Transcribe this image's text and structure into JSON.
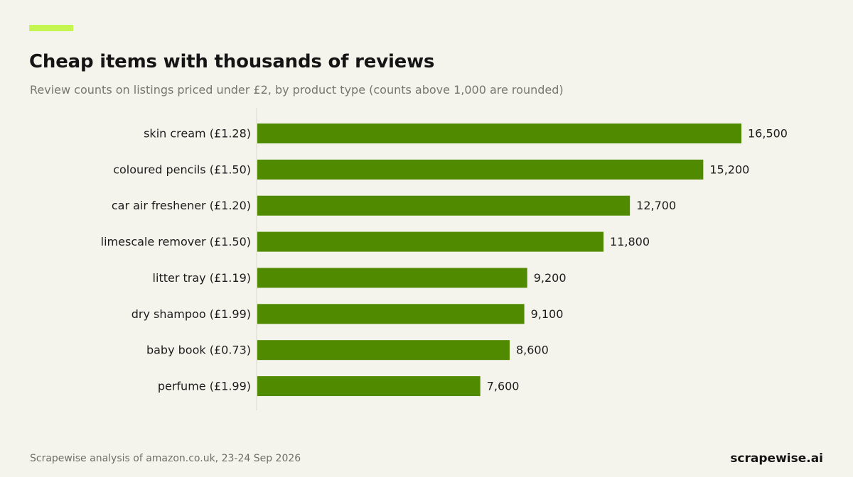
{
  "title": "Cheap items with thousands of reviews",
  "subtitle": "Review counts on listings priced under £2, by product type (counts above 1,000 are rounded)",
  "footer": {
    "source": "Scrapewise analysis of amazon.co.uk, 23-24 Sep 2026",
    "brand": "scrapewise.ai"
  },
  "colors": {
    "accent": "#c4f550",
    "bar": "#4f8a00",
    "axis": "#d9d9c8",
    "background": "#f5f4ec"
  },
  "chart_data": {
    "type": "bar",
    "orientation": "horizontal",
    "title": "Cheap items with thousands of reviews",
    "subtitle": "Review counts on listings priced under £2, by product type (counts above 1,000 are rounded)",
    "categories": [
      "skin cream (£1.28)",
      "coloured pencils (£1.50)",
      "car air freshener (£1.20)",
      "limescale remover (£1.50)",
      "litter tray (£1.19)",
      "dry shampoo (£1.99)",
      "baby book (£0.73)",
      "perfume (£1.99)"
    ],
    "values": [
      16500,
      15200,
      12700,
      11800,
      9200,
      9100,
      8600,
      7600
    ],
    "value_labels": [
      "16,500",
      "15,200",
      "12,700",
      "11,800",
      "9,200",
      "9,100",
      "8,600",
      "7,600"
    ],
    "xlabel": "",
    "ylabel": "",
    "xlim": [
      0,
      16500
    ],
    "grid": false,
    "legend": "none"
  }
}
